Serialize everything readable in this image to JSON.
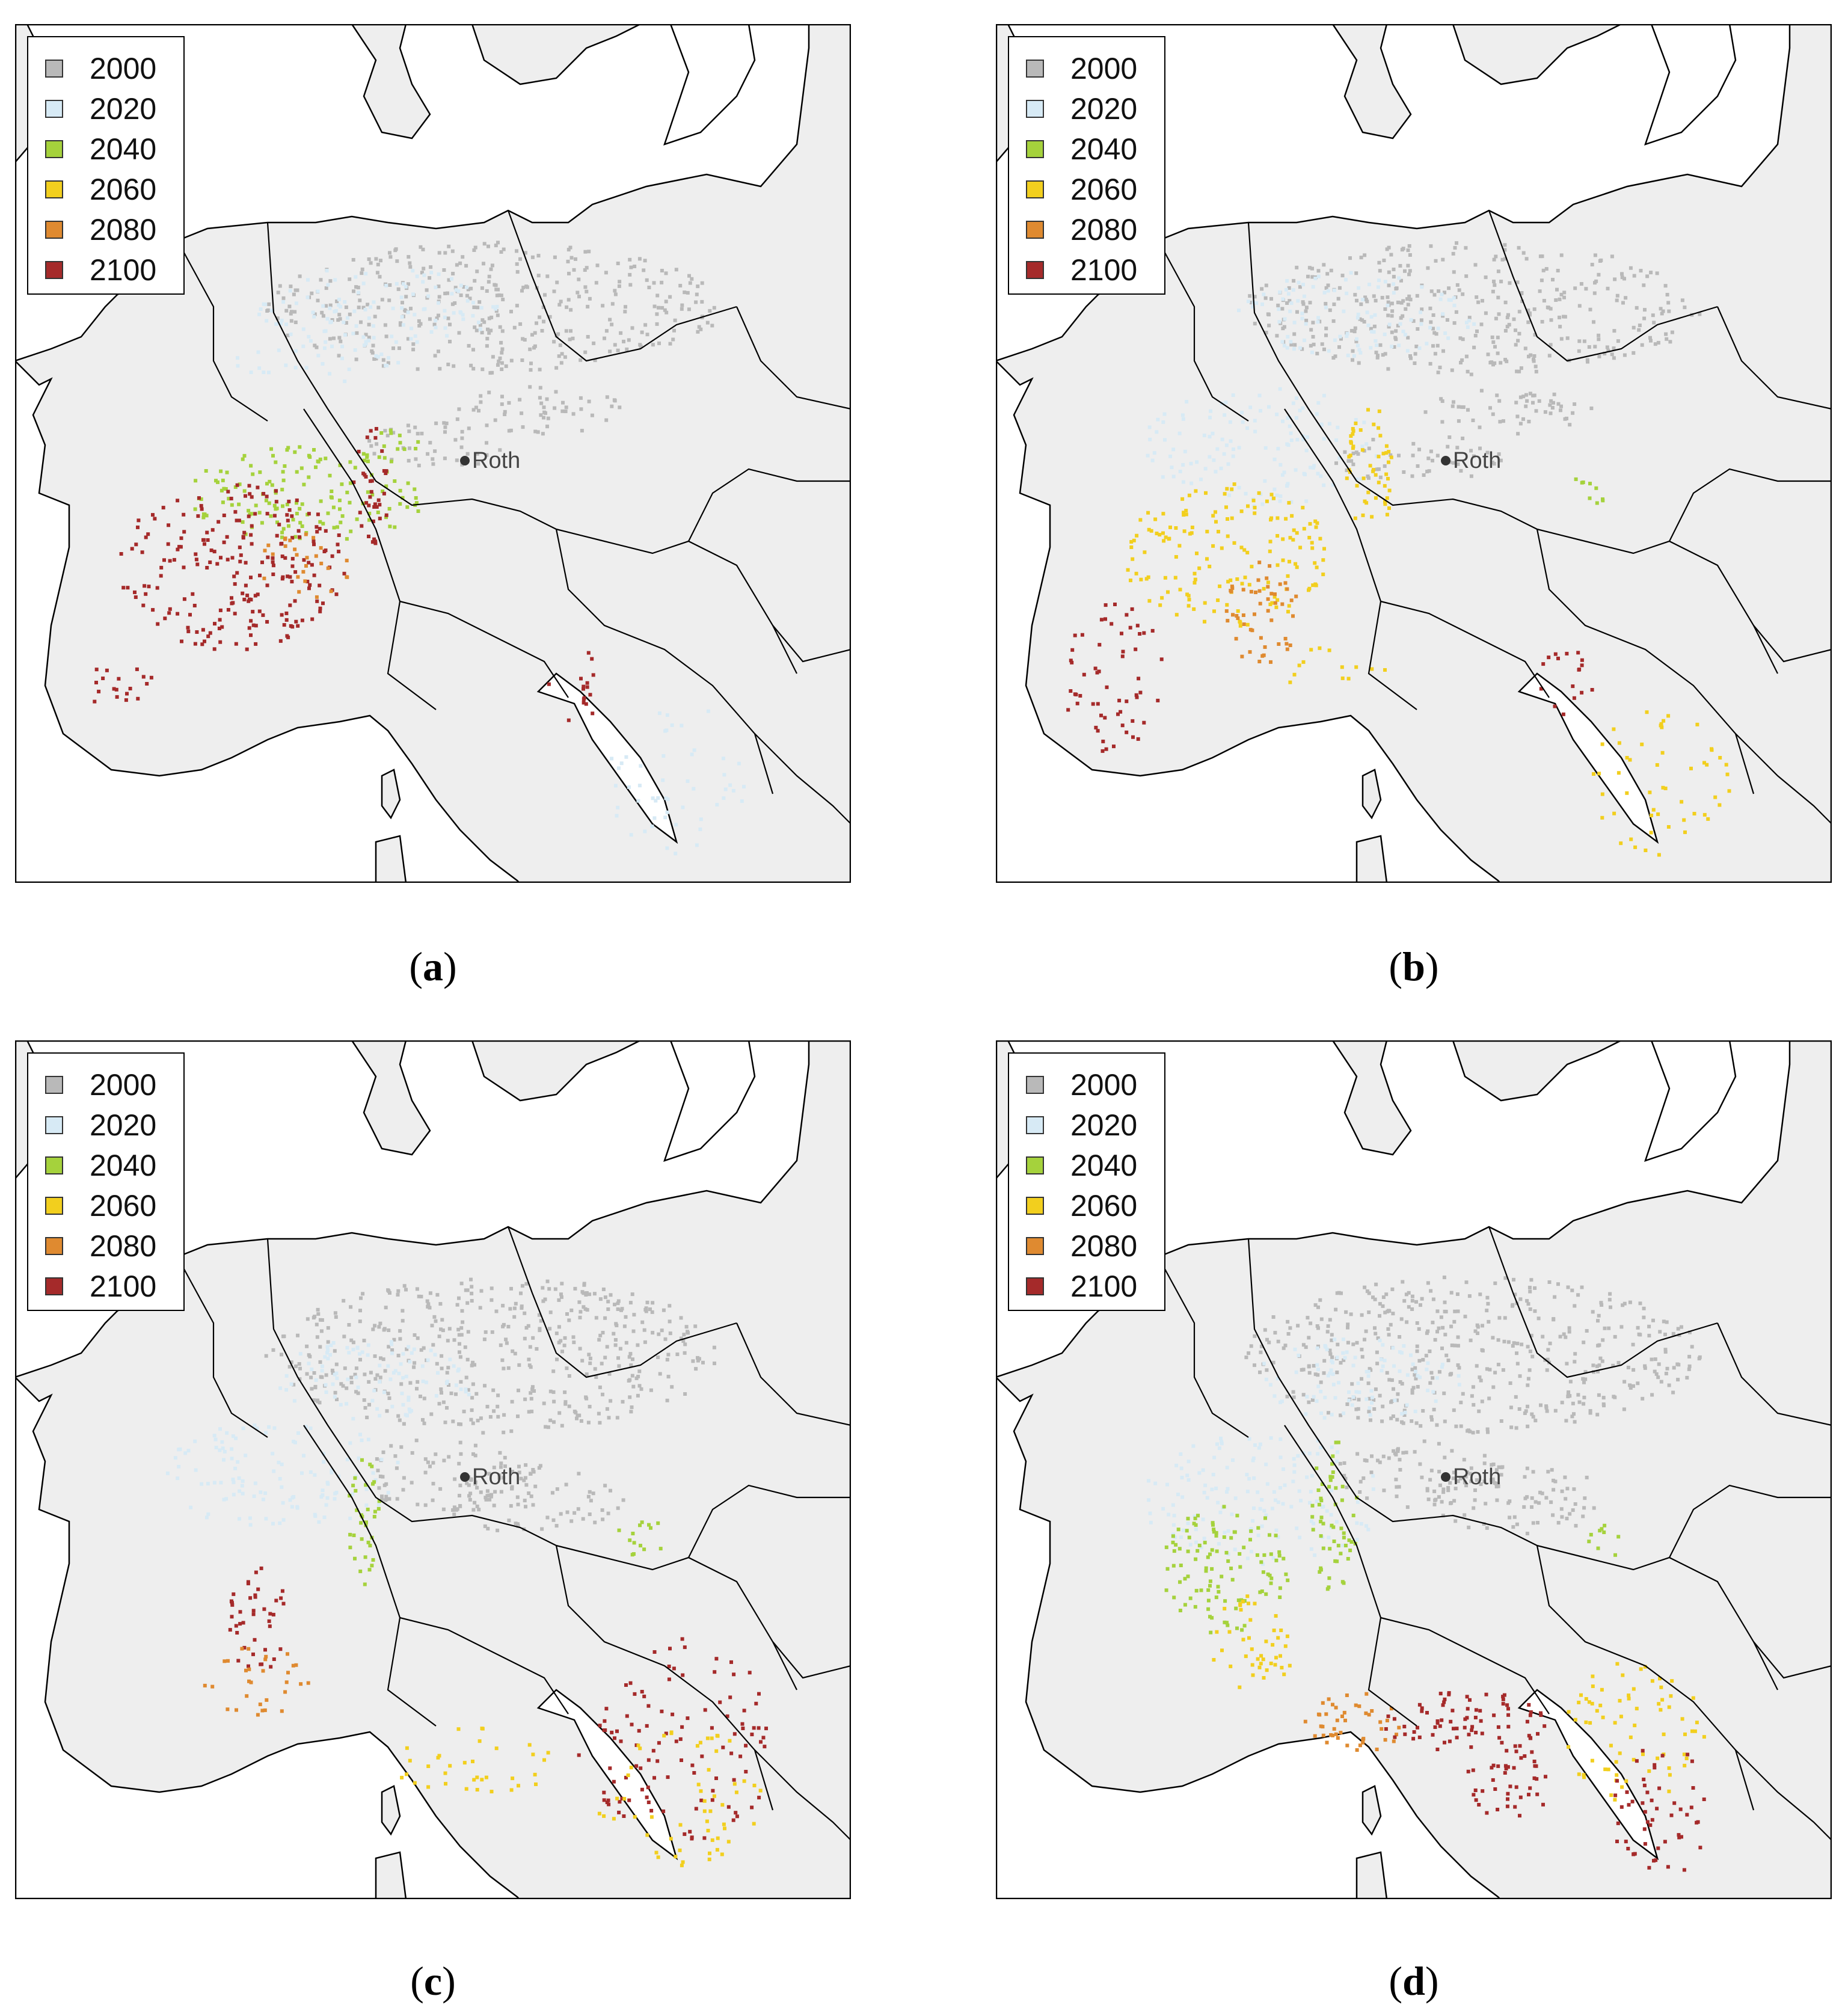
{
  "legend": {
    "items": [
      {
        "label": "2000",
        "color": "#b9b9b9"
      },
      {
        "label": "2020",
        "color": "#d7eaf5"
      },
      {
        "label": "2040",
        "color": "#a5d23c"
      },
      {
        "label": "2060",
        "color": "#f2cf1e"
      },
      {
        "label": "2080",
        "color": "#df8a30"
      },
      {
        "label": "2100",
        "color": "#a52a2a"
      }
    ]
  },
  "map": {
    "land_color": "#eeeeee",
    "sea_color": "#ffffff",
    "marker_label": "Roth"
  },
  "panels": [
    {
      "letter": "a",
      "caption_open": "(",
      "caption_close": ")"
    },
    {
      "letter": "b",
      "caption_open": "(",
      "caption_close": ")"
    },
    {
      "letter": "c",
      "caption_open": "(",
      "caption_close": ")"
    },
    {
      "letter": "d",
      "caption_open": "(",
      "caption_close": ")"
    }
  ]
}
